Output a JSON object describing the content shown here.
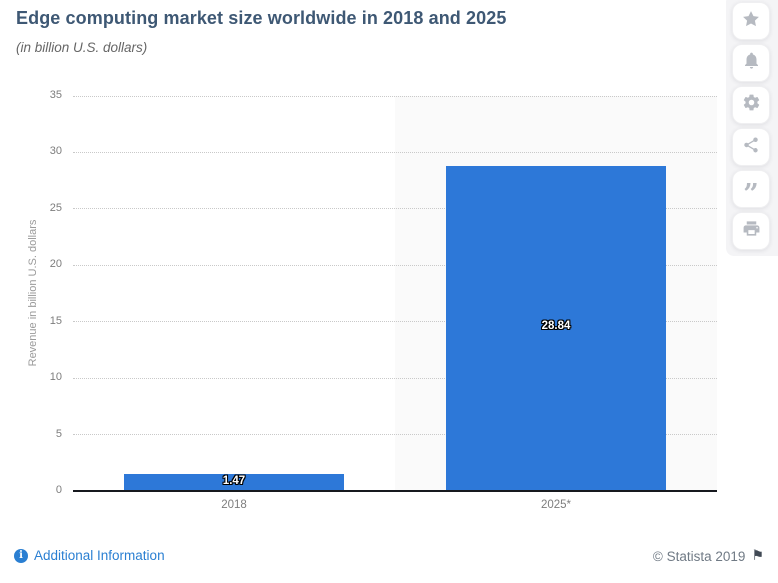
{
  "header": {
    "title": "Edge computing market size worldwide in 2018 and 2025",
    "subtitle": "(in billion U.S. dollars)"
  },
  "toolbar": {
    "buttons": [
      "favorite",
      "notifications",
      "settings",
      "share",
      "cite",
      "print"
    ]
  },
  "chart_data": {
    "type": "bar",
    "title": "Edge computing market size worldwide in 2018 and 2025",
    "subtitle": "(in billion U.S. dollars)",
    "categories": [
      "2018",
      "2025*"
    ],
    "values": [
      1.47,
      28.84
    ],
    "data_labels": [
      "1.47",
      "28.84"
    ],
    "xlabel": "",
    "ylabel": "Revenue in billion U.S. dollars",
    "ylim": [
      0,
      35
    ],
    "ytick_step": 5,
    "yticks": [
      0,
      5,
      10,
      15,
      20,
      25,
      30,
      35
    ],
    "grid": "horizontal-dotted",
    "legend": "none",
    "bar_color": "#2d78d8",
    "highlight_band": {
      "category_index": 1,
      "color": "#fafafa"
    }
  },
  "footer": {
    "additional_info_label": "Additional Information",
    "copyright": "© Statista 2019"
  },
  "colors": {
    "title": "#3e5874",
    "subtitle": "#666666",
    "axis_text": "#7d7d7d",
    "link_blue": "#2a7fd2",
    "bar_blue": "#2d78d8"
  }
}
